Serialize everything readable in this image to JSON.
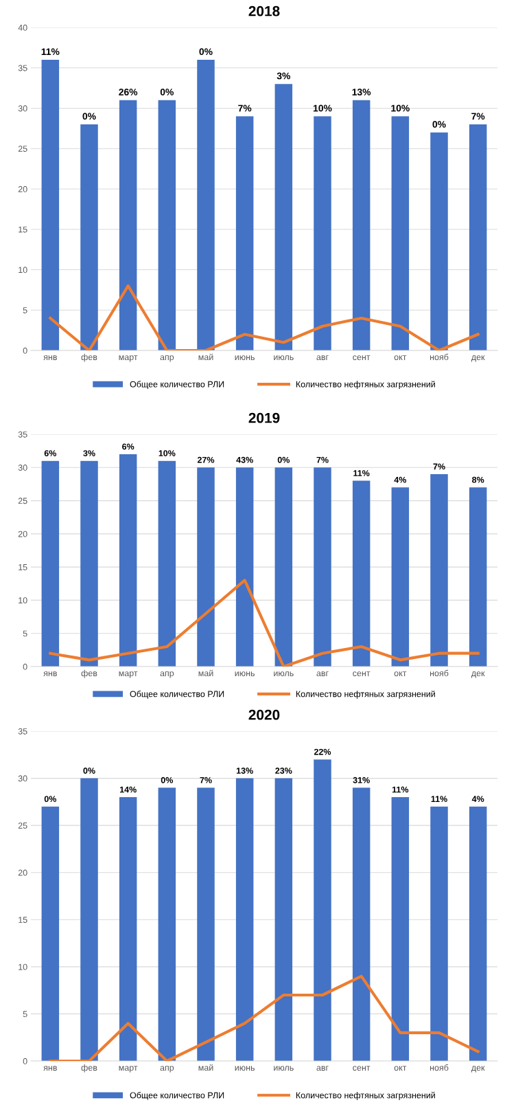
{
  "chart_data": [
    {
      "type": "bar",
      "title": "2018",
      "categories": [
        "янв",
        "фев",
        "март",
        "апр",
        "май",
        "июнь",
        "июль",
        "авг",
        "сент",
        "окт",
        "нояб",
        "дек"
      ],
      "ylim": [
        0,
        40
      ],
      "yticks": [
        0,
        5,
        10,
        15,
        20,
        25,
        30,
        35,
        40
      ],
      "grid": "y",
      "legend": "bottom",
      "series": [
        {
          "name": "Общее количество РЛИ",
          "color": "#4472c4",
          "values": [
            36,
            28,
            31,
            31,
            36,
            29,
            33,
            29,
            31,
            29,
            27,
            28
          ]
        },
        {
          "name": "Количество нефтяных загрязнений",
          "type": "line",
          "color": "#ed7d31",
          "values": [
            4,
            0,
            8,
            0,
            0,
            2,
            1,
            3,
            4,
            3,
            0,
            2
          ]
        }
      ],
      "annotations": [
        {
          "text": "11%",
          "x": "янв",
          "y": 36
        },
        {
          "text": "0%",
          "x": "фев",
          "y": 28
        },
        {
          "text": "26%",
          "x": "март",
          "y": 31
        },
        {
          "text": "0%",
          "x": "апр",
          "y": 31
        },
        {
          "text": "0%",
          "x": "май",
          "y": 36
        },
        {
          "text": "7%",
          "x": "июнь",
          "y": 29
        },
        {
          "text": "3%",
          "x": "июль",
          "y": 33
        },
        {
          "text": "10%",
          "x": "авг",
          "y": 29
        },
        {
          "text": "13%",
          "x": "сент",
          "y": 31
        },
        {
          "text": "10%",
          "x": "окт",
          "y": 29
        },
        {
          "text": "0%",
          "x": "нояб",
          "y": 27
        },
        {
          "text": "7%",
          "x": "дек",
          "y": 28
        }
      ]
    },
    {
      "type": "bar",
      "title": "2019",
      "categories": [
        "янв",
        "фев",
        "март",
        "апр",
        "май",
        "июнь",
        "июль",
        "авг",
        "сент",
        "окт",
        "нояб",
        "дек"
      ],
      "ylim": [
        0,
        35
      ],
      "yticks": [
        0,
        5,
        10,
        15,
        20,
        25,
        30,
        35
      ],
      "grid": "y",
      "legend": "bottom",
      "series": [
        {
          "name": "Общее количество РЛИ",
          "color": "#4472c4",
          "values": [
            31,
            31,
            32,
            31,
            30,
            30,
            30,
            30,
            28,
            27,
            29,
            27
          ]
        },
        {
          "name": "Количество нефтяных загрязнений",
          "type": "line",
          "color": "#ed7d31",
          "values": [
            2,
            1,
            2,
            3,
            8,
            13,
            0,
            2,
            3,
            1,
            2,
            2
          ]
        }
      ],
      "annotations": [
        {
          "text": "6%",
          "x": "янв",
          "y": 31
        },
        {
          "text": "3%",
          "x": "фев",
          "y": 31
        },
        {
          "text": "6%",
          "x": "март",
          "y": 32
        },
        {
          "text": "10%",
          "x": "апр",
          "y": 31
        },
        {
          "text": "27%",
          "x": "май",
          "y": 30
        },
        {
          "text": "43%",
          "x": "июнь",
          "y": 30
        },
        {
          "text": "0%",
          "x": "июль",
          "y": 30
        },
        {
          "text": "7%",
          "x": "авг",
          "y": 30
        },
        {
          "text": "11%",
          "x": "сент",
          "y": 28
        },
        {
          "text": "4%",
          "x": "окт",
          "y": 27
        },
        {
          "text": "7%",
          "x": "нояб",
          "y": 29
        },
        {
          "text": "8%",
          "x": "дек",
          "y": 27
        }
      ]
    },
    {
      "type": "bar",
      "title": "2020",
      "categories": [
        "янв",
        "фев",
        "март",
        "апр",
        "май",
        "июнь",
        "июль",
        "авг",
        "сент",
        "окт",
        "нояб",
        "дек"
      ],
      "ylim": [
        0,
        35
      ],
      "yticks": [
        0,
        5,
        10,
        15,
        20,
        25,
        30,
        35
      ],
      "grid": "y",
      "legend": "bottom",
      "series": [
        {
          "name": "Общее количество РЛИ",
          "color": "#4472c4",
          "values": [
            27,
            30,
            28,
            29,
            29,
            30,
            30,
            32,
            29,
            28,
            27,
            27
          ]
        },
        {
          "name": "Количество нефтяных загрязнений",
          "type": "line",
          "color": "#ed7d31",
          "values": [
            0,
            0,
            4,
            0,
            2,
            4,
            7,
            7,
            9,
            3,
            3,
            1
          ]
        }
      ],
      "annotations": [
        {
          "text": "0%",
          "x": "янв",
          "y": 27
        },
        {
          "text": "0%",
          "x": "фев",
          "y": 30
        },
        {
          "text": "14%",
          "x": "март",
          "y": 28
        },
        {
          "text": "0%",
          "x": "апр",
          "y": 29
        },
        {
          "text": "7%",
          "x": "май",
          "y": 29
        },
        {
          "text": "13%",
          "x": "июнь",
          "y": 30
        },
        {
          "text": "23%",
          "x": "июль",
          "y": 30
        },
        {
          "text": "22%",
          "x": "авг",
          "y": 32
        },
        {
          "text": "31%",
          "x": "сент",
          "y": 29
        },
        {
          "text": "11%",
          "x": "окт",
          "y": 28
        },
        {
          "text": "11%",
          "x": "нояб",
          "y": 27
        },
        {
          "text": "4%",
          "x": "дек",
          "y": 27
        }
      ]
    }
  ]
}
